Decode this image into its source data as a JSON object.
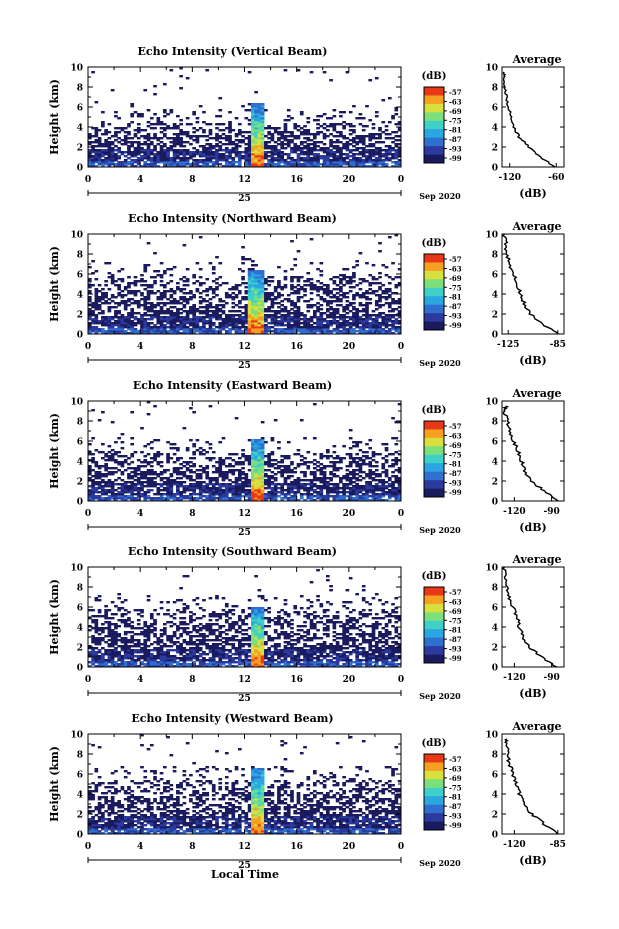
{
  "figure": {
    "xlabel": "Local Time",
    "day_label": "25",
    "month_label": "Sep 2020"
  },
  "colorbar": {
    "unit": "(dB)",
    "ticks": [
      "-57",
      "-63",
      "-69",
      "-75",
      "-81",
      "-87",
      "-93",
      "-99"
    ],
    "colors": [
      "#1a1a5e",
      "#2b3a9e",
      "#2f6fd0",
      "#2aa6e0",
      "#3fd0c8",
      "#7ce07a",
      "#d8e040",
      "#f6a020",
      "#e83818"
    ]
  },
  "chart_data": [
    {
      "type": "heatmap",
      "title": "Echo Intensity (Vertical Beam)",
      "xlabel": "",
      "ylabel": "Height (km)",
      "xlim": [
        0,
        24
      ],
      "ylim": [
        0,
        10
      ],
      "xticks": [
        "0",
        "4",
        "8",
        "12",
        "16",
        "20",
        "0"
      ],
      "yticks": [
        "0",
        "2",
        "4",
        "6",
        "8",
        "10"
      ],
      "clim": [
        -102,
        -54
      ],
      "core_time": [
        12.5,
        13.5
      ],
      "core_top_km": 6.4,
      "cloud_top_km": 4.4,
      "average_profile": {
        "title": "Average",
        "xlabel": "(dB)",
        "xticks": [
          "-120",
          "-60"
        ],
        "xlim": [
          -130,
          -50
        ],
        "height_km": [
          0,
          1,
          2,
          3,
          4,
          5,
          6,
          7,
          8,
          9,
          9.5
        ],
        "value_db": [
          -62,
          -80,
          -95,
          -108,
          -115,
          -118,
          -122,
          -124,
          -126,
          -128,
          -127
        ]
      }
    },
    {
      "type": "heatmap",
      "title": "Echo Intensity (Northward Beam)",
      "xlabel": "",
      "ylabel": "Height (km)",
      "xlim": [
        0,
        24
      ],
      "ylim": [
        0,
        10
      ],
      "xticks": [
        "0",
        "4",
        "8",
        "12",
        "16",
        "20",
        "0"
      ],
      "yticks": [
        "0",
        "2",
        "4",
        "6",
        "8",
        "10"
      ],
      "clim": [
        -102,
        -54
      ],
      "core_time": [
        12.3,
        13.6
      ],
      "core_top_km": 6.4,
      "cloud_top_km": 5.8,
      "average_profile": {
        "title": "Average",
        "xlabel": "(dB)",
        "xticks": [
          "-125",
          "-85"
        ],
        "xlim": [
          -130,
          -80
        ],
        "height_km": [
          0,
          1,
          2,
          3,
          4,
          5,
          6,
          7,
          8,
          9,
          10
        ],
        "value_db": [
          -84,
          -98,
          -107,
          -112,
          -115,
          -118,
          -121,
          -124,
          -126,
          -127,
          -128
        ]
      }
    },
    {
      "type": "heatmap",
      "title": "Echo Intensity (Eastward Beam)",
      "xlabel": "",
      "ylabel": "Height (km)",
      "xlim": [
        0,
        24
      ],
      "ylim": [
        0,
        10
      ],
      "xticks": [
        "0",
        "4",
        "8",
        "12",
        "16",
        "20",
        "0"
      ],
      "yticks": [
        "0",
        "2",
        "4",
        "6",
        "8",
        "10"
      ],
      "clim": [
        -102,
        -54
      ],
      "core_time": [
        12.4,
        13.5
      ],
      "core_top_km": 6.2,
      "cloud_top_km": 5.0,
      "average_profile": {
        "title": "Average",
        "xlabel": "(dB)",
        "xticks": [
          "-120",
          "-90"
        ],
        "xlim": [
          -130,
          -80
        ],
        "height_km": [
          0,
          1,
          2,
          3,
          4,
          5,
          6,
          7,
          8,
          9,
          9.5
        ],
        "value_db": [
          -84,
          -96,
          -106,
          -112,
          -114,
          -117,
          -121,
          -124,
          -126,
          -128,
          -127
        ]
      }
    },
    {
      "type": "heatmap",
      "title": "Echo Intensity (Southward Beam)",
      "xlabel": "",
      "ylabel": "Height (km)",
      "xlim": [
        0,
        24
      ],
      "ylim": [
        0,
        10
      ],
      "xticks": [
        "0",
        "4",
        "8",
        "12",
        "16",
        "20",
        "0"
      ],
      "yticks": [
        "0",
        "2",
        "4",
        "6",
        "8",
        "10"
      ],
      "clim": [
        -102,
        -54
      ],
      "core_time": [
        12.4,
        13.5
      ],
      "core_top_km": 6.0,
      "cloud_top_km": 5.8,
      "average_profile": {
        "title": "Average",
        "xlabel": "(dB)",
        "xticks": [
          "-120",
          "-90"
        ],
        "xlim": [
          -130,
          -80
        ],
        "height_km": [
          0,
          1,
          2,
          3,
          4,
          5,
          6,
          7,
          8,
          9,
          10
        ],
        "value_db": [
          -86,
          -98,
          -108,
          -113,
          -116,
          -118,
          -121,
          -124,
          -126,
          -127,
          -128
        ]
      }
    },
    {
      "type": "heatmap",
      "title": "Echo Intensity (Westward Beam)",
      "xlabel": "",
      "ylabel": "Height (km)",
      "xlim": [
        0,
        24
      ],
      "ylim": [
        0,
        10
      ],
      "xticks": [
        "0",
        "4",
        "8",
        "12",
        "16",
        "20",
        "0"
      ],
      "yticks": [
        "0",
        "2",
        "4",
        "6",
        "8",
        "10"
      ],
      "clim": [
        -102,
        -54
      ],
      "core_time": [
        12.5,
        13.4
      ],
      "core_top_km": 6.5,
      "cloud_top_km": 5.4,
      "average_profile": {
        "title": "Average",
        "xlabel": "(dB)",
        "xticks": [
          "-120",
          "-85"
        ],
        "xlim": [
          -130,
          -80
        ],
        "height_km": [
          0,
          1,
          2,
          3,
          4,
          5,
          6,
          7,
          8,
          9,
          9.5
        ],
        "value_db": [
          -84,
          -96,
          -106,
          -112,
          -116,
          -118,
          -121,
          -124,
          -125,
          -127,
          -126
        ]
      }
    }
  ]
}
